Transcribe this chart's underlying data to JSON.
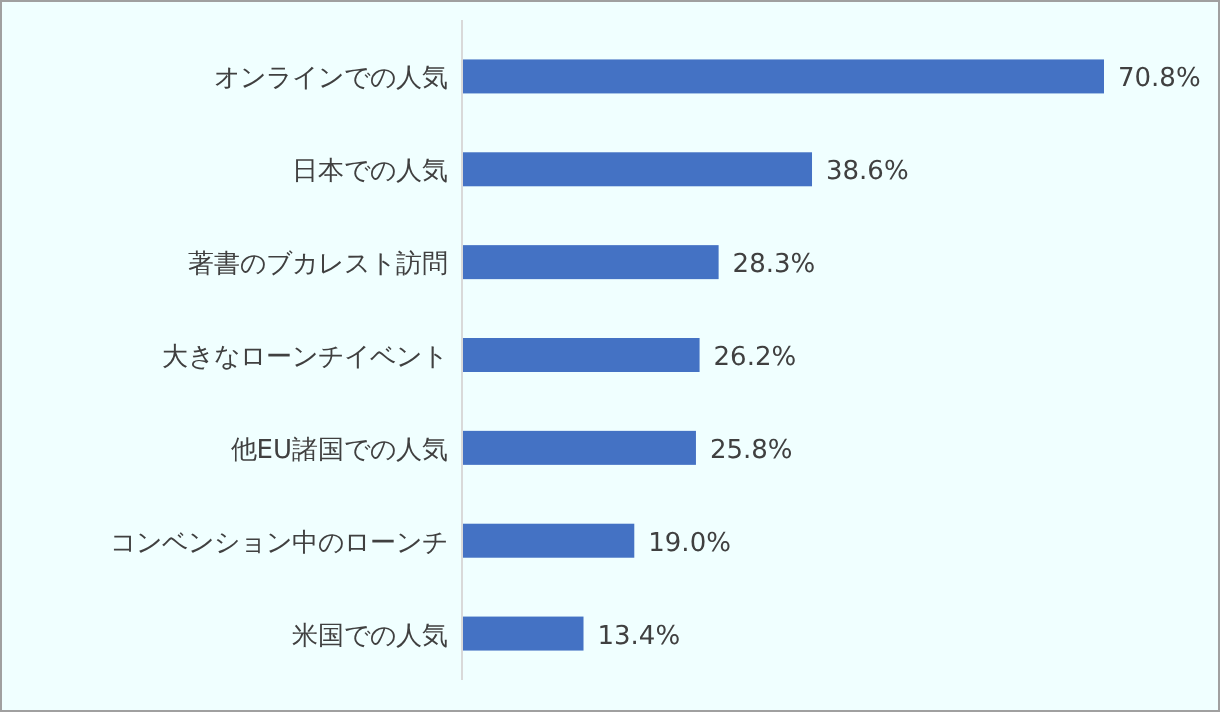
{
  "chart_data": {
    "type": "bar",
    "orientation": "horizontal",
    "categories": [
      "オンラインでの人気",
      "日本での人気",
      "著書のブカレスト訪問",
      "大きなローンチイベント",
      "他EU諸国での人気",
      "コンベンション中のローンチ",
      "米国での人気"
    ],
    "values": [
      70.8,
      38.6,
      28.3,
      26.2,
      25.8,
      19.0,
      13.4
    ],
    "value_labels": [
      "70.8%",
      "38.6%",
      "28.3%",
      "26.2%",
      "25.8%",
      "19.0%",
      "13.4%"
    ],
    "color": "#4472c4"
  }
}
